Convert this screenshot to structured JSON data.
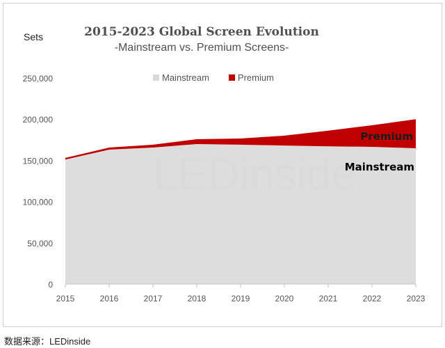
{
  "chart_data": {
    "type": "area",
    "stacked": true,
    "title": "2015-2023 Global Screen Evolution",
    "subtitle": "-Mainstream vs. Premium Screens-",
    "ylabel": "Sets",
    "xlabel": "",
    "categories": [
      "2015",
      "2016",
      "2017",
      "2018",
      "2019",
      "2020",
      "2021",
      "2022",
      "2023"
    ],
    "series": [
      {
        "name": "Mainstream",
        "color": "#d9d9d9",
        "values": [
          151000,
          163000,
          165500,
          169800,
          169000,
          168000,
          167000,
          166400,
          164700
        ]
      },
      {
        "name": "Premium",
        "color": "#c00000",
        "values": [
          2000,
          2500,
          3500,
          5900,
          7500,
          12000,
          19000,
          26200,
          35300
        ]
      }
    ],
    "ylim": [
      0,
      250000
    ],
    "yticks": [
      "0",
      "50,000",
      "100,000",
      "150,000",
      "200,000",
      "250,000"
    ],
    "grid": false,
    "legend_position": "top",
    "annotations": [
      "Premium",
      "Mainstream"
    ]
  },
  "footer": "数据来源：LEDinside",
  "watermark": "LEDinside"
}
